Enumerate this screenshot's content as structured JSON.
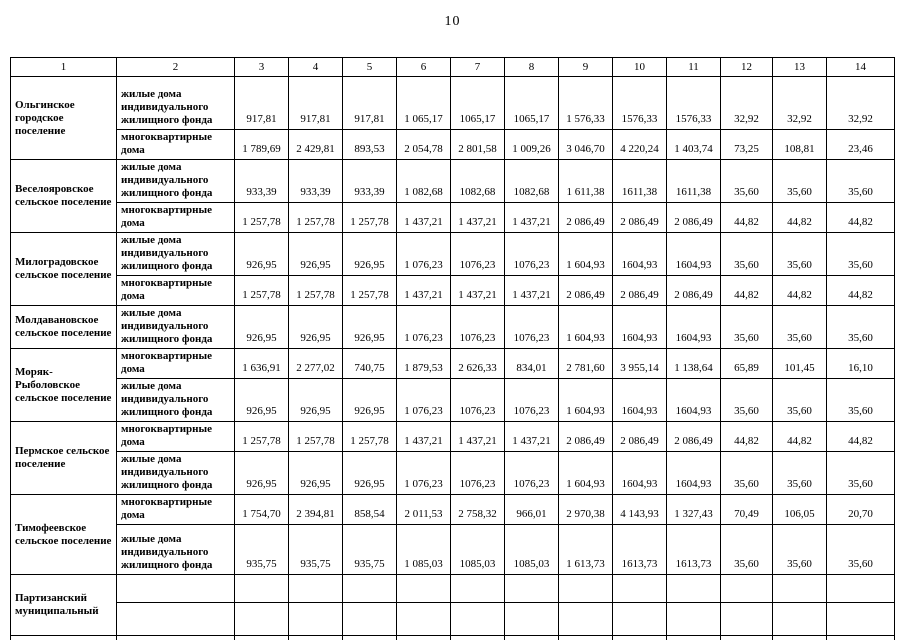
{
  "page": {
    "number": "10"
  },
  "table": {
    "columns": [
      "1",
      "2",
      "3",
      "4",
      "5",
      "6",
      "7",
      "8",
      "9",
      "10",
      "11",
      "12",
      "13",
      "14"
    ],
    "rows": [
      {
        "settlement": {
          "name": "Ольгинское городское поселение",
          "span": 2
        },
        "kind": "individual",
        "rh": 53,
        "type": "жилые дома индивидуального жилищного фонда",
        "values": [
          "917,81",
          "917,81",
          "917,81",
          "1 065,17",
          "1065,17",
          "1065,17",
          "1 576,33",
          "1576,33",
          "1576,33",
          "32,92",
          "32,92",
          "32,92"
        ]
      },
      {
        "kind": "apartment",
        "rh": 28,
        "type": "многоквартирные дома",
        "values": [
          "1 789,69",
          "2 429,81",
          "893,53",
          "2 054,78",
          "2 801,58",
          "1 009,26",
          "3 046,70",
          "4 220,24",
          "1 403,74",
          "73,25",
          "108,81",
          "23,46"
        ]
      },
      {
        "settlement": {
          "name": "Веселояровское сельское поселение",
          "span": 2
        },
        "kind": "individual",
        "rh": 42,
        "type": "жилые дома индивидуального жилищного фонда",
        "values": [
          "933,39",
          "933,39",
          "933,39",
          "1 082,68",
          "1082,68",
          "1082,68",
          "1 611,38",
          "1611,38",
          "1611,38",
          "35,60",
          "35,60",
          "35,60"
        ]
      },
      {
        "kind": "apartment",
        "rh": 28,
        "type": "многоквартирные дома",
        "values": [
          "1 257,78",
          "1 257,78",
          "1 257,78",
          "1 437,21",
          "1 437,21",
          "1 437,21",
          "2 086,49",
          "2 086,49",
          "2 086,49",
          "44,82",
          "44,82",
          "44,82"
        ]
      },
      {
        "settlement": {
          "name": "Милоградовское сельское поселение",
          "span": 2
        },
        "kind": "individual",
        "rh": 42,
        "type": "жилые дома индивидуального жилищного фонда",
        "values": [
          "926,95",
          "926,95",
          "926,95",
          "1 076,23",
          "1076,23",
          "1076,23",
          "1 604,93",
          "1604,93",
          "1604,93",
          "35,60",
          "35,60",
          "35,60"
        ]
      },
      {
        "kind": "apartment",
        "rh": 28,
        "type": "многоквартирные дома",
        "values": [
          "1 257,78",
          "1 257,78",
          "1 257,78",
          "1 437,21",
          "1 437,21",
          "1 437,21",
          "2 086,49",
          "2 086,49",
          "2 086,49",
          "44,82",
          "44,82",
          "44,82"
        ]
      },
      {
        "settlement": {
          "name": "Молдавановское сельское поселение",
          "span": 1
        },
        "kind": "individual",
        "rh": 42,
        "type": "жилые дома индивидуального жилищного фонда",
        "values": [
          "926,95",
          "926,95",
          "926,95",
          "1 076,23",
          "1076,23",
          "1076,23",
          "1 604,93",
          "1604,93",
          "1604,93",
          "35,60",
          "35,60",
          "35,60"
        ]
      },
      {
        "settlement": {
          "name": "Моряк-Рыболовское сельское поселение",
          "span": 2
        },
        "kind": "apartment",
        "rh": 28,
        "type": "многоквартирные дома",
        "values": [
          "1 636,91",
          "2 277,02",
          "740,75",
          "1 879,53",
          "2 626,33",
          "834,01",
          "2 781,60",
          "3 955,14",
          "1 138,64",
          "65,89",
          "101,45",
          "16,10"
        ]
      },
      {
        "kind": "individual",
        "rh": 42,
        "type": "жилые дома индивидуального жилищного фонда",
        "values": [
          "926,95",
          "926,95",
          "926,95",
          "1 076,23",
          "1076,23",
          "1076,23",
          "1 604,93",
          "1604,93",
          "1604,93",
          "35,60",
          "35,60",
          "35,60"
        ]
      },
      {
        "settlement": {
          "name": "Пермское сельское поселение",
          "span": 2
        },
        "kind": "apartment",
        "rh": 28,
        "type": "многоквартирные дома",
        "values": [
          "1 257,78",
          "1 257,78",
          "1 257,78",
          "1 437,21",
          "1 437,21",
          "1 437,21",
          "2 086,49",
          "2 086,49",
          "2 086,49",
          "44,82",
          "44,82",
          "44,82"
        ]
      },
      {
        "kind": "individual",
        "rh": 42,
        "type": "жилые дома индивидуального жилищного фонда",
        "values": [
          "926,95",
          "926,95",
          "926,95",
          "1 076,23",
          "1076,23",
          "1076,23",
          "1 604,93",
          "1604,93",
          "1604,93",
          "35,60",
          "35,60",
          "35,60"
        ]
      },
      {
        "settlement": {
          "name": "Тимофеевское сельское поселение",
          "span": 2
        },
        "kind": "apartment",
        "rh": 28,
        "type": "многоквартирные дома",
        "values": [
          "1 754,70",
          "2 394,81",
          "858,54",
          "2 011,53",
          "2 758,32",
          "966,01",
          "2 970,38",
          "4 143,93",
          "1 327,43",
          "70,49",
          "106,05",
          "20,70"
        ]
      },
      {
        "kind": "individual",
        "rh": 50,
        "type": "жилые дома индивидуального жилищного фонда",
        "values": [
          "935,75",
          "935,75",
          "935,75",
          "1 085,03",
          "1085,03",
          "1085,03",
          "1 613,73",
          "1613,73",
          "1613,73",
          "35,60",
          "35,60",
          "35,60"
        ]
      },
      {
        "settlement": {
          "name": "Партизанский муниципальный",
          "span": 2
        },
        "kind": "empty",
        "rh": 28,
        "type": "",
        "values": [
          "",
          "",
          "",
          "",
          "",
          "",
          "",
          "",
          "",
          "",
          "",
          ""
        ]
      },
      {
        "kind": "empty",
        "rh": 33,
        "type": "",
        "values": [
          "",
          "",
          "",
          "",
          "",
          "",
          "",
          "",
          "",
          "",
          "",
          ""
        ]
      },
      {
        "settlement": {
          "name": "",
          "span": 1
        },
        "kind": "empty",
        "rh": 14,
        "type": "",
        "values": [
          "",
          "",
          "",
          "",
          "",
          "",
          "",
          "",
          "",
          "",
          "",
          ""
        ]
      }
    ]
  }
}
